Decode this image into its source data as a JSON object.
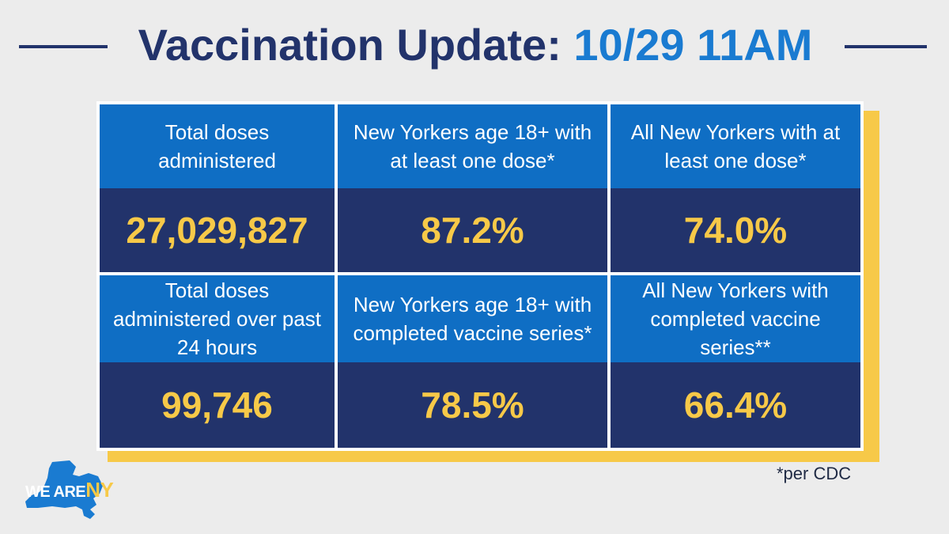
{
  "title": {
    "main": "Vaccination Update:",
    "date": "10/29 11AM"
  },
  "metrics": [
    {
      "label": "Total doses administered",
      "value": "27,029,827"
    },
    {
      "label": "New Yorkers age 18+ with at least one dose*",
      "value": "87.2%"
    },
    {
      "label": "All New Yorkers with at least one dose*",
      "value": "74.0%"
    },
    {
      "label": "Total doses administered over past 24 hours",
      "value": "99,746"
    },
    {
      "label": "New Yorkers age 18+ with completed vaccine series*",
      "value": "78.5%"
    },
    {
      "label": "All New Yorkers with completed vaccine series**",
      "value": "66.4%"
    }
  ],
  "footnote": "*per CDC",
  "logo": {
    "we_are": "WE ARE",
    "ny": "NY",
    "icon": "new-york-state-shape-icon"
  },
  "colors": {
    "navy": "#22336b",
    "blue": "#0f6ec4",
    "accent_blue": "#1a7bd1",
    "yellow": "#f7c948",
    "background": "#ececec"
  }
}
